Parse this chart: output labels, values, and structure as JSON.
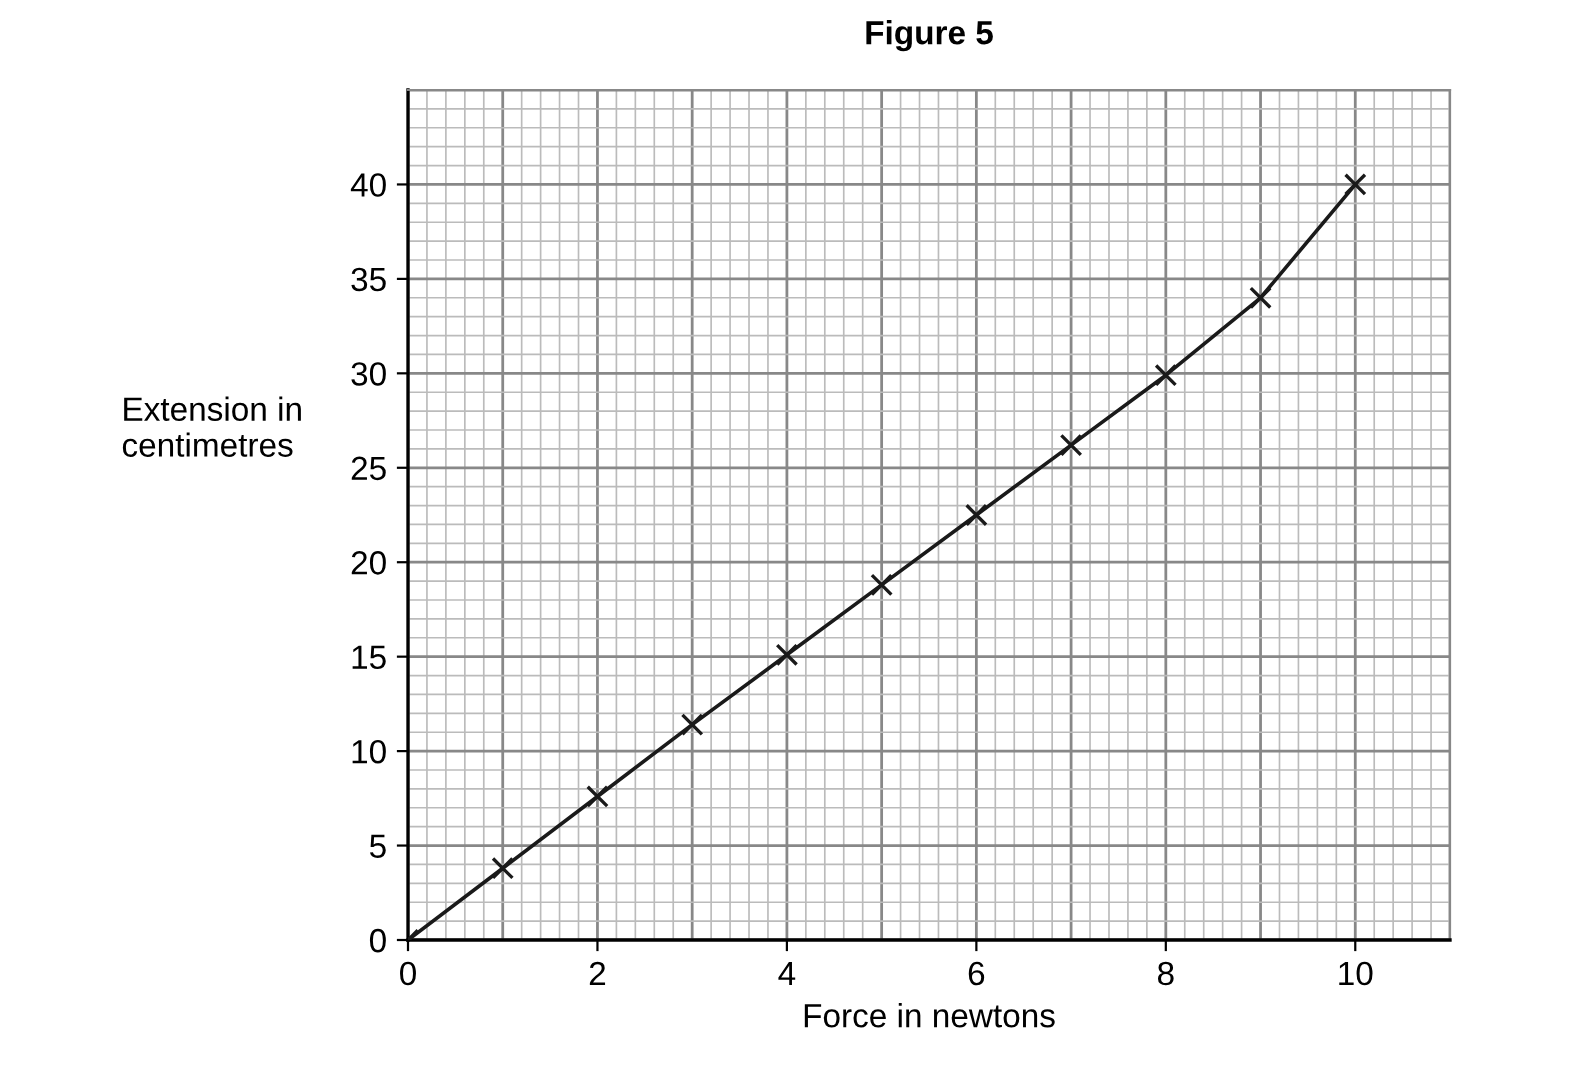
{
  "chart_data": {
    "type": "line",
    "title": "Figure 5",
    "xlabel": "Force in newtons",
    "ylabel": "Extension in\ncentimetres",
    "x": [
      0,
      1,
      2,
      3,
      4,
      5,
      6,
      7,
      8,
      9,
      10
    ],
    "series": [
      {
        "color": "#1a1a1a",
        "values": [
          0,
          3.8,
          7.6,
          11.4,
          15.1,
          18.8,
          22.5,
          26.2,
          29.9,
          34,
          40
        ]
      }
    ],
    "xlim": [
      0,
      11
    ],
    "ylim": [
      0,
      45
    ],
    "xticks": [
      0,
      2,
      4,
      6,
      8,
      10
    ],
    "yticks": [
      0,
      5,
      10,
      15,
      20,
      25,
      30,
      35,
      40
    ],
    "grid": true,
    "marker": "cross",
    "line_style": "solid"
  }
}
